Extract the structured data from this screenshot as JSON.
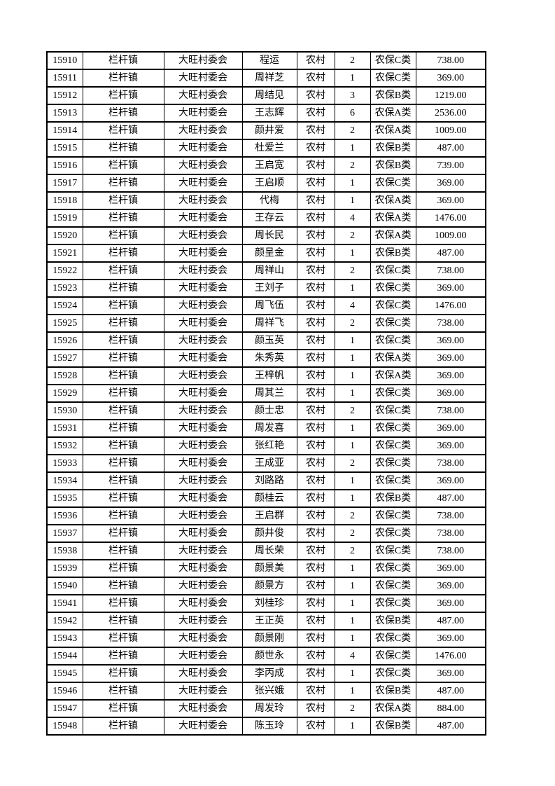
{
  "page": {
    "background_color": "#ffffff",
    "text_color": "#000000",
    "border_color": "#000000"
  },
  "table": {
    "column_keys": [
      "serial-number",
      "town",
      "village-committee",
      "name",
      "residence-type",
      "person-count",
      "insurance-class",
      "amount"
    ],
    "rows": [
      [
        "15910",
        "栏杆镇",
        "大旺村委会",
        "程运",
        "农村",
        "2",
        "农保C类",
        "738.00"
      ],
      [
        "15911",
        "栏杆镇",
        "大旺村委会",
        "周祥芝",
        "农村",
        "1",
        "农保C类",
        "369.00"
      ],
      [
        "15912",
        "栏杆镇",
        "大旺村委会",
        "周结见",
        "农村",
        "3",
        "农保B类",
        "1219.00"
      ],
      [
        "15913",
        "栏杆镇",
        "大旺村委会",
        "王志辉",
        "农村",
        "6",
        "农保A类",
        "2536.00"
      ],
      [
        "15914",
        "栏杆镇",
        "大旺村委会",
        "颜井爱",
        "农村",
        "2",
        "农保A类",
        "1009.00"
      ],
      [
        "15915",
        "栏杆镇",
        "大旺村委会",
        "杜爱兰",
        "农村",
        "1",
        "农保B类",
        "487.00"
      ],
      [
        "15916",
        "栏杆镇",
        "大旺村委会",
        "王启宽",
        "农村",
        "2",
        "农保B类",
        "739.00"
      ],
      [
        "15917",
        "栏杆镇",
        "大旺村委会",
        "王启顺",
        "农村",
        "1",
        "农保C类",
        "369.00"
      ],
      [
        "15918",
        "栏杆镇",
        "大旺村委会",
        "代梅",
        "农村",
        "1",
        "农保A类",
        "369.00"
      ],
      [
        "15919",
        "栏杆镇",
        "大旺村委会",
        "王存云",
        "农村",
        "4",
        "农保A类",
        "1476.00"
      ],
      [
        "15920",
        "栏杆镇",
        "大旺村委会",
        "周长民",
        "农村",
        "2",
        "农保A类",
        "1009.00"
      ],
      [
        "15921",
        "栏杆镇",
        "大旺村委会",
        "颜呈金",
        "农村",
        "1",
        "农保B类",
        "487.00"
      ],
      [
        "15922",
        "栏杆镇",
        "大旺村委会",
        "周祥山",
        "农村",
        "2",
        "农保C类",
        "738.00"
      ],
      [
        "15923",
        "栏杆镇",
        "大旺村委会",
        "王刘子",
        "农村",
        "1",
        "农保C类",
        "369.00"
      ],
      [
        "15924",
        "栏杆镇",
        "大旺村委会",
        "周飞伍",
        "农村",
        "4",
        "农保C类",
        "1476.00"
      ],
      [
        "15925",
        "栏杆镇",
        "大旺村委会",
        "周祥飞",
        "农村",
        "2",
        "农保C类",
        "738.00"
      ],
      [
        "15926",
        "栏杆镇",
        "大旺村委会",
        "颜玉英",
        "农村",
        "1",
        "农保C类",
        "369.00"
      ],
      [
        "15927",
        "栏杆镇",
        "大旺村委会",
        "朱秀英",
        "农村",
        "1",
        "农保A类",
        "369.00"
      ],
      [
        "15928",
        "栏杆镇",
        "大旺村委会",
        "王梓帆",
        "农村",
        "1",
        "农保A类",
        "369.00"
      ],
      [
        "15929",
        "栏杆镇",
        "大旺村委会",
        "周其兰",
        "农村",
        "1",
        "农保C类",
        "369.00"
      ],
      [
        "15930",
        "栏杆镇",
        "大旺村委会",
        "颜士忠",
        "农村",
        "2",
        "农保C类",
        "738.00"
      ],
      [
        "15931",
        "栏杆镇",
        "大旺村委会",
        "周发喜",
        "农村",
        "1",
        "农保C类",
        "369.00"
      ],
      [
        "15932",
        "栏杆镇",
        "大旺村委会",
        "张红艳",
        "农村",
        "1",
        "农保C类",
        "369.00"
      ],
      [
        "15933",
        "栏杆镇",
        "大旺村委会",
        "王成亚",
        "农村",
        "2",
        "农保C类",
        "738.00"
      ],
      [
        "15934",
        "栏杆镇",
        "大旺村委会",
        "刘路路",
        "农村",
        "1",
        "农保C类",
        "369.00"
      ],
      [
        "15935",
        "栏杆镇",
        "大旺村委会",
        "颜桂云",
        "农村",
        "1",
        "农保B类",
        "487.00"
      ],
      [
        "15936",
        "栏杆镇",
        "大旺村委会",
        "王启群",
        "农村",
        "2",
        "农保C类",
        "738.00"
      ],
      [
        "15937",
        "栏杆镇",
        "大旺村委会",
        "颜井俊",
        "农村",
        "2",
        "农保C类",
        "738.00"
      ],
      [
        "15938",
        "栏杆镇",
        "大旺村委会",
        "周长荣",
        "农村",
        "2",
        "农保C类",
        "738.00"
      ],
      [
        "15939",
        "栏杆镇",
        "大旺村委会",
        "颜景美",
        "农村",
        "1",
        "农保C类",
        "369.00"
      ],
      [
        "15940",
        "栏杆镇",
        "大旺村委会",
        "颜景方",
        "农村",
        "1",
        "农保C类",
        "369.00"
      ],
      [
        "15941",
        "栏杆镇",
        "大旺村委会",
        "刘桂珍",
        "农村",
        "1",
        "农保C类",
        "369.00"
      ],
      [
        "15942",
        "栏杆镇",
        "大旺村委会",
        "王正英",
        "农村",
        "1",
        "农保B类",
        "487.00"
      ],
      [
        "15943",
        "栏杆镇",
        "大旺村委会",
        "颜景刚",
        "农村",
        "1",
        "农保C类",
        "369.00"
      ],
      [
        "15944",
        "栏杆镇",
        "大旺村委会",
        "颜世永",
        "农村",
        "4",
        "农保C类",
        "1476.00"
      ],
      [
        "15945",
        "栏杆镇",
        "大旺村委会",
        "李丙成",
        "农村",
        "1",
        "农保C类",
        "369.00"
      ],
      [
        "15946",
        "栏杆镇",
        "大旺村委会",
        "张兴娥",
        "农村",
        "1",
        "农保B类",
        "487.00"
      ],
      [
        "15947",
        "栏杆镇",
        "大旺村委会",
        "周发玲",
        "农村",
        "2",
        "农保A类",
        "884.00"
      ],
      [
        "15948",
        "栏杆镇",
        "大旺村委会",
        "陈玉玲",
        "农村",
        "1",
        "农保B类",
        "487.00"
      ]
    ]
  }
}
